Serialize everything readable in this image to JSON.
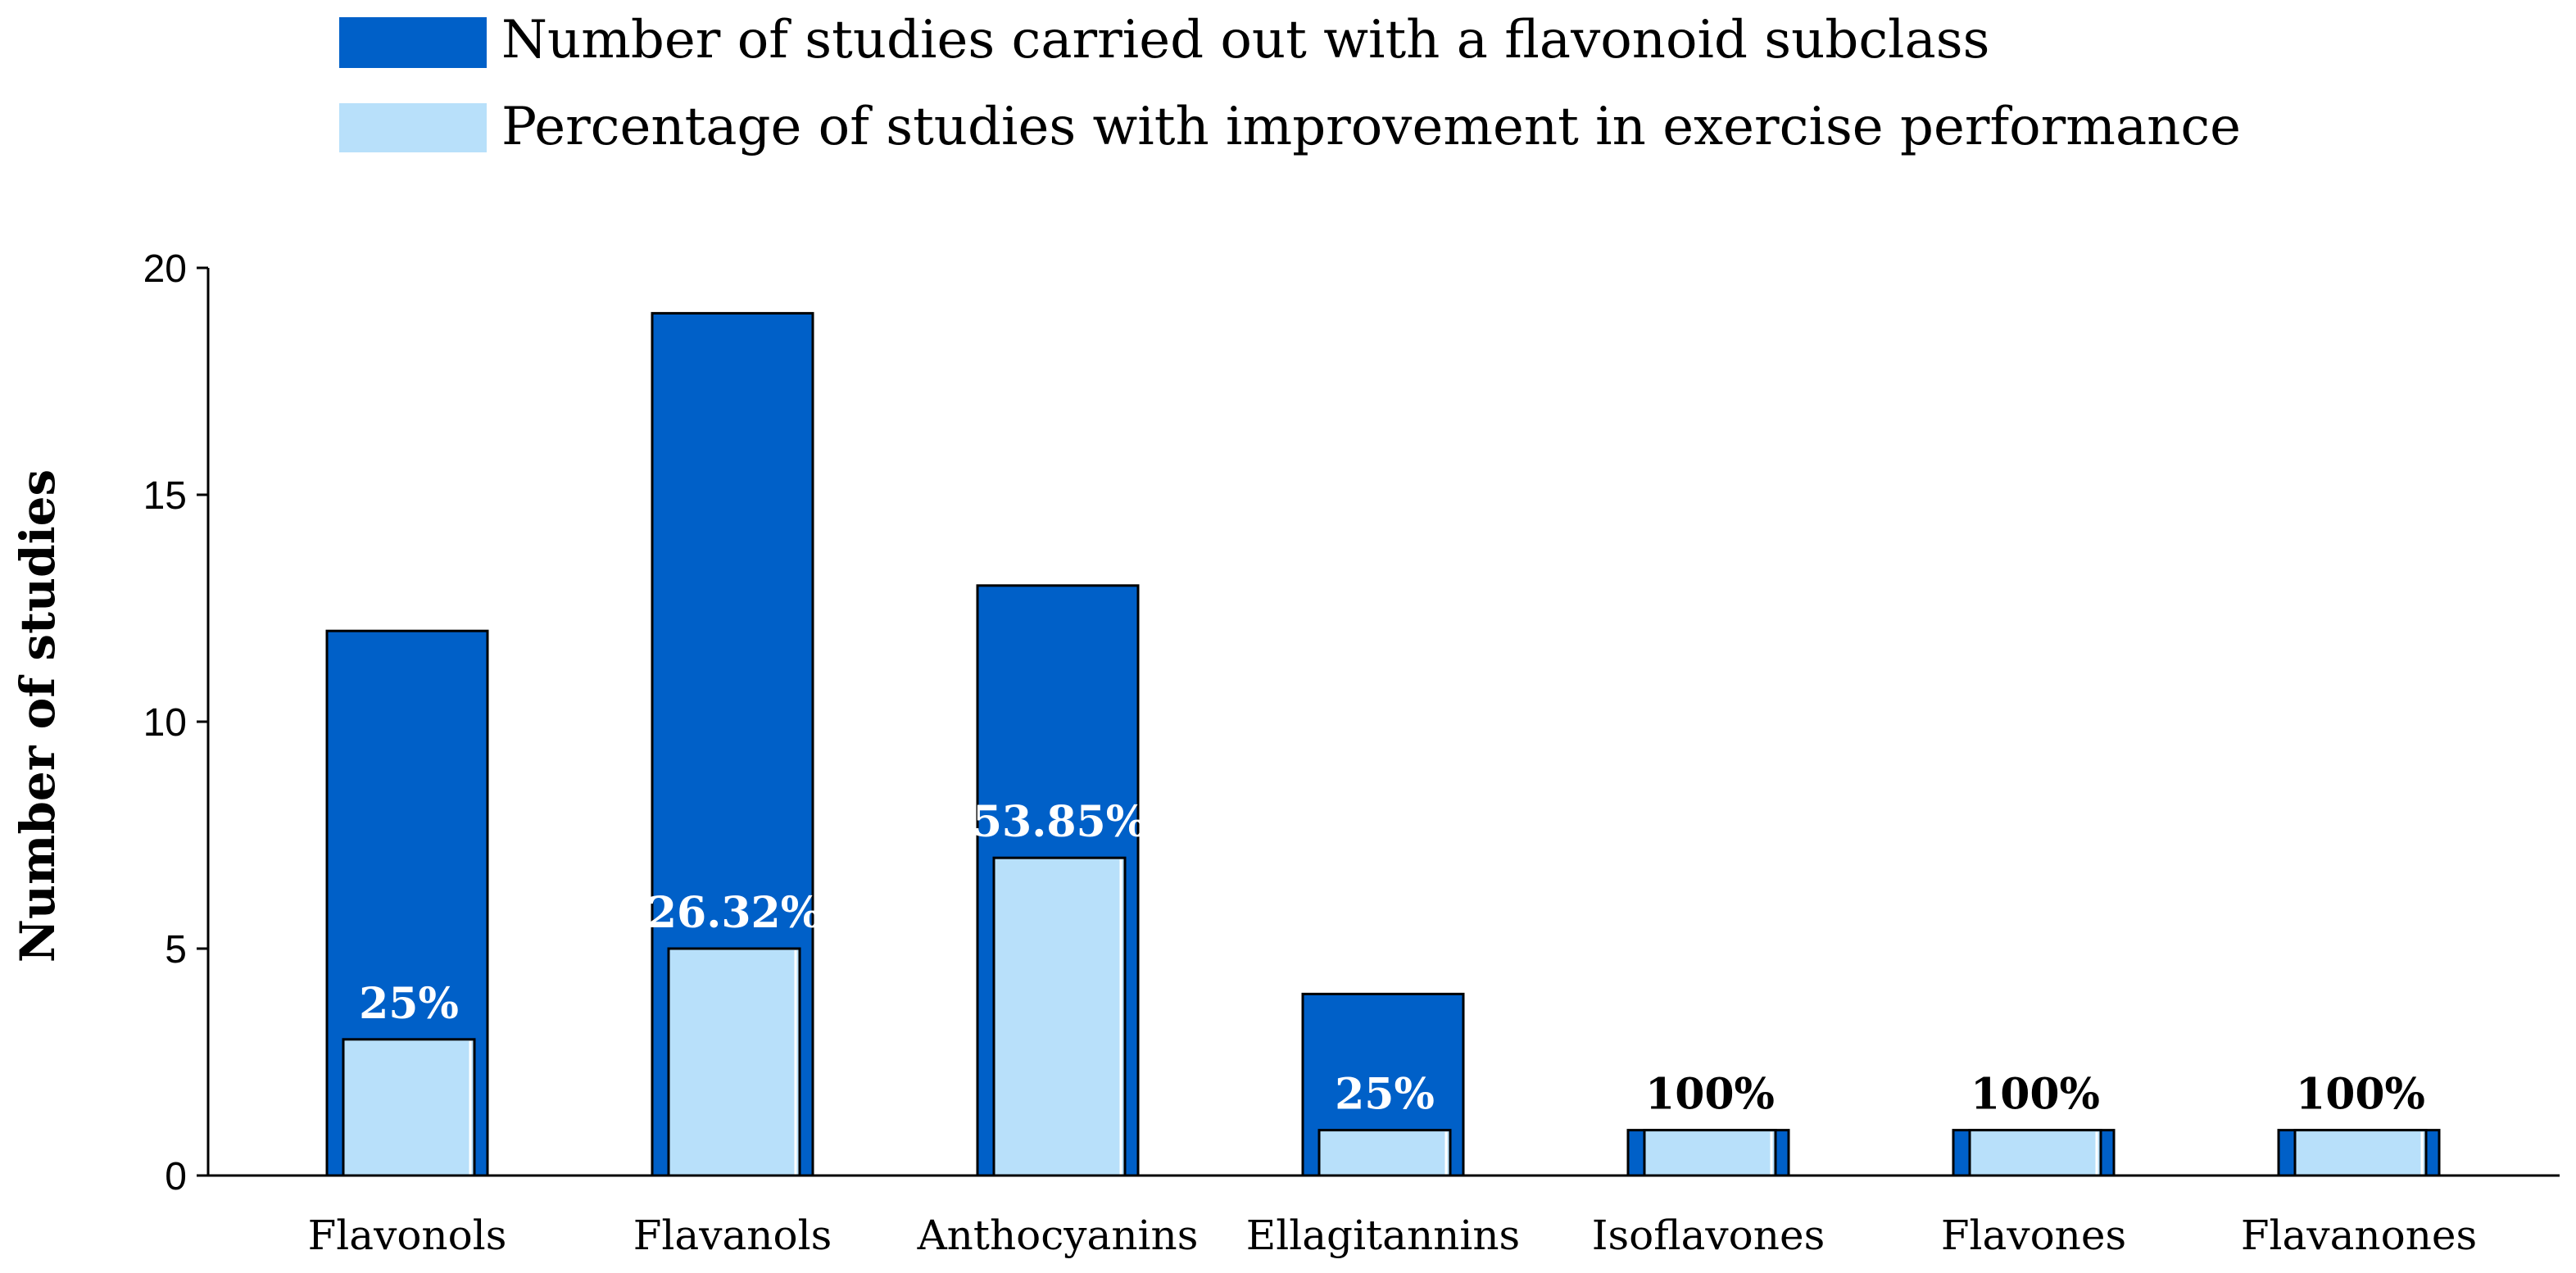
{
  "chart_data": {
    "type": "bar",
    "title": "",
    "xlabel": "",
    "ylabel": "Number of studies",
    "ylim": [
      0,
      20
    ],
    "yticks": [
      "0",
      "5",
      "10",
      "15",
      "20"
    ],
    "categories": [
      "Flavonols",
      "Flavanols",
      "Anthocyanins",
      "Ellagitannins",
      "Isoflavones",
      "Flavones",
      "Flavanones"
    ],
    "series": [
      {
        "name": "Number of studies carried out with a flavonoid subclass",
        "color": "#0060c8",
        "values": [
          12,
          19,
          13,
          4,
          1,
          1,
          1
        ]
      },
      {
        "name": "Percentage of studies with improvement in exercise performance",
        "color": "#b8e0fa",
        "values": [
          3,
          5,
          7,
          1,
          1,
          1,
          1
        ]
      }
    ],
    "data_labels": [
      "25%",
      "26.32%",
      "53.85%",
      "25%",
      "100%",
      "100%",
      "100%"
    ],
    "data_label_colors": [
      "#ffffff",
      "#ffffff",
      "#ffffff",
      "#ffffff",
      "#000000",
      "#000000",
      "#000000"
    ],
    "legend_position": "top"
  }
}
